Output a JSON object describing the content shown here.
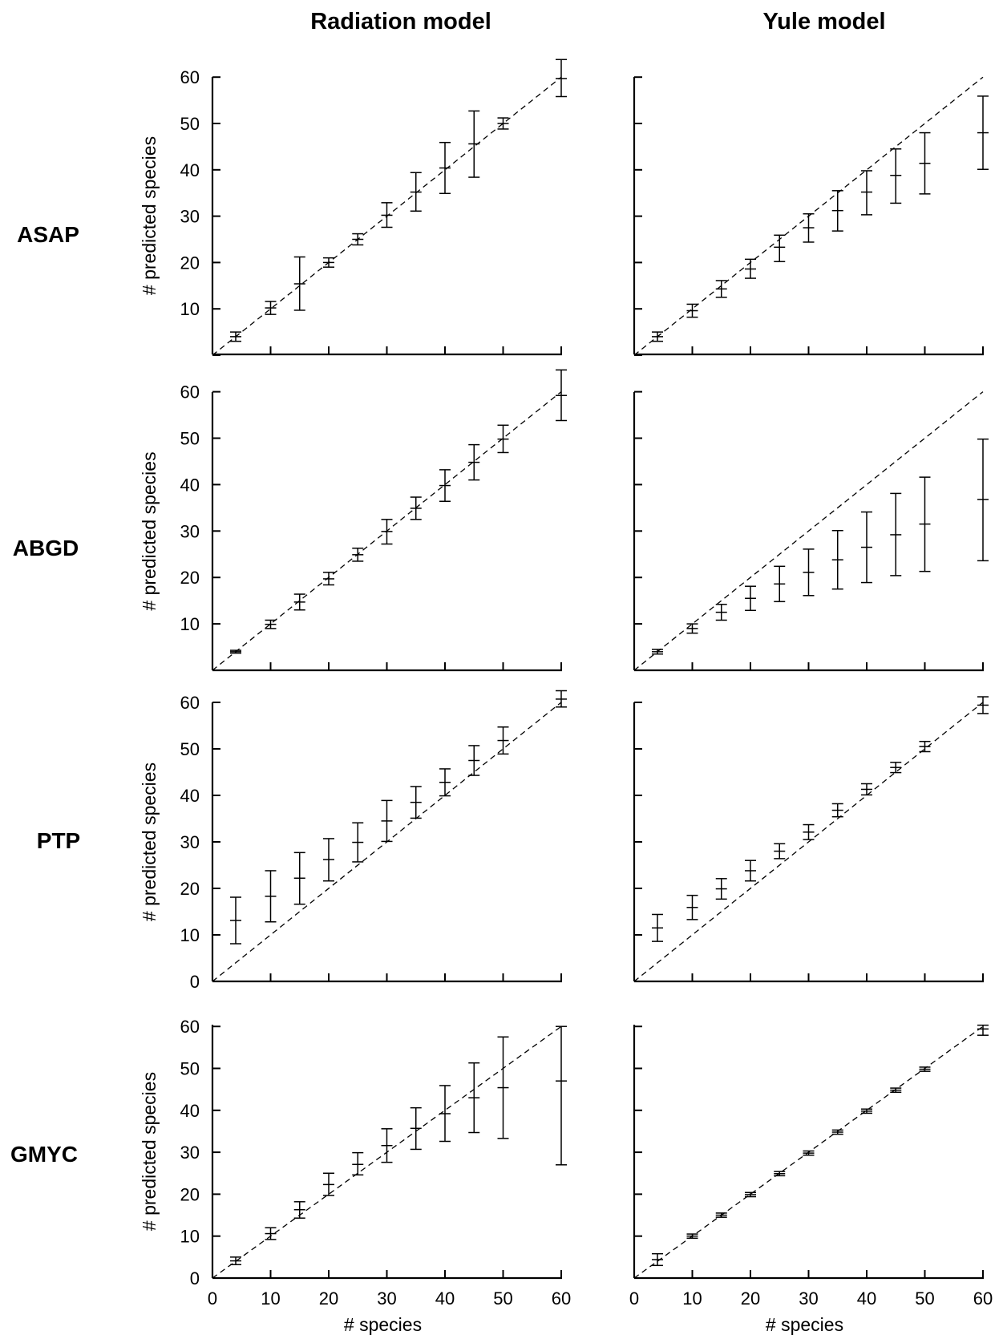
{
  "figure": {
    "column_titles": [
      "Radiation model",
      "Yule model"
    ],
    "row_labels": [
      "ASAP",
      "ABGD",
      "PTP",
      "GMYC"
    ]
  },
  "chart_data": [
    {
      "type": "scatter",
      "row": "ASAP",
      "column": "Radiation model",
      "xlabel": "",
      "ylabel": "# predicted species",
      "xlim": [
        0,
        60
      ],
      "ylim": [
        0,
        60
      ],
      "y_ticks": [
        10,
        20,
        30,
        40,
        50,
        60
      ],
      "x_ticks": [],
      "reference_line": "y = x (dashed)",
      "x": [
        4,
        10,
        15,
        20,
        25,
        30,
        35,
        40,
        45,
        50,
        60
      ],
      "y": [
        4,
        10.2,
        15.4,
        20,
        25,
        30.2,
        35.2,
        40.4,
        45.6,
        50,
        59.7
      ],
      "y_low": [
        3,
        8.8,
        9.7,
        19,
        23.8,
        27.6,
        31.1,
        34.9,
        38.4,
        48.8,
        55.8
      ],
      "y_high": [
        5,
        11.6,
        21.2,
        21,
        26.2,
        32.9,
        39.4,
        45.9,
        52.7,
        51.2,
        63.8
      ]
    },
    {
      "type": "scatter",
      "row": "ASAP",
      "column": "Yule model",
      "xlabel": "",
      "ylabel": "",
      "xlim": [
        0,
        60
      ],
      "ylim": [
        0,
        60
      ],
      "y_ticks": [],
      "x_ticks": [],
      "reference_line": "y = x (dashed)",
      "x": [
        4,
        10,
        15,
        20,
        25,
        30,
        35,
        40,
        45,
        50,
        60
      ],
      "y": [
        4,
        9.6,
        14.3,
        18.6,
        23.3,
        27.5,
        31.2,
        35.2,
        38.8,
        41.4,
        48
      ],
      "y_low": [
        3,
        8.2,
        12.5,
        16.6,
        20.2,
        24.4,
        26.8,
        30.3,
        32.8,
        34.8,
        40.1
      ],
      "y_high": [
        5,
        11,
        16.1,
        20.7,
        25.9,
        30.5,
        35.5,
        39.8,
        44.5,
        48,
        55.9
      ]
    },
    {
      "type": "scatter",
      "row": "ABGD",
      "column": "Radiation model",
      "xlabel": "",
      "ylabel": "# predicted species",
      "xlim": [
        0,
        60
      ],
      "ylim": [
        0,
        60
      ],
      "y_ticks": [
        10,
        20,
        30,
        40,
        50,
        60
      ],
      "x_ticks": [],
      "reference_line": "y = x (dashed)",
      "x": [
        4,
        10,
        15,
        20,
        25,
        30,
        35,
        40,
        45,
        50,
        60
      ],
      "y": [
        4,
        9.9,
        14.7,
        19.7,
        24.9,
        29.9,
        34.9,
        39.8,
        44.8,
        49.8,
        59.2
      ],
      "y_low": [
        3.7,
        9,
        13,
        18.4,
        23.5,
        27.2,
        32.5,
        36.4,
        41,
        46.9,
        53.8
      ],
      "y_high": [
        4.3,
        10.8,
        16.4,
        21.1,
        26.3,
        32.5,
        37.3,
        43.2,
        48.6,
        52.8,
        64.7
      ]
    },
    {
      "type": "scatter",
      "row": "ABGD",
      "column": "Yule model",
      "xlabel": "",
      "ylabel": "",
      "xlim": [
        0,
        60
      ],
      "ylim": [
        0,
        60
      ],
      "y_ticks": [],
      "x_ticks": [],
      "reference_line": "y = x (dashed)",
      "x": [
        4,
        10,
        15,
        20,
        25,
        30,
        35,
        40,
        45,
        50,
        60
      ],
      "y": [
        4,
        9,
        12.5,
        15.5,
        18.6,
        21.1,
        23.8,
        26.5,
        29.2,
        31.5,
        36.8
      ],
      "y_low": [
        3.5,
        8,
        10.8,
        12.9,
        14.8,
        16.1,
        17.5,
        18.9,
        20.4,
        21.3,
        23.6
      ],
      "y_high": [
        4.5,
        10,
        14.2,
        18.1,
        22.4,
        26.1,
        30.1,
        34.1,
        38.1,
        41.6,
        49.8
      ]
    },
    {
      "type": "scatter",
      "row": "PTP",
      "column": "Radiation model",
      "xlabel": "",
      "ylabel": "# predicted species",
      "xlim": [
        0,
        60
      ],
      "ylim": [
        0,
        60
      ],
      "y_ticks": [
        0,
        10,
        20,
        30,
        40,
        50,
        60
      ],
      "x_ticks": [],
      "reference_line": "y = x (dashed)",
      "x": [
        4,
        10,
        15,
        20,
        25,
        30,
        35,
        40,
        45,
        50,
        60
      ],
      "y": [
        13.1,
        18.3,
        22.2,
        26.2,
        29.9,
        34.5,
        38.5,
        42.8,
        47.5,
        51.8,
        60.7
      ],
      "y_low": [
        8.1,
        12.8,
        16.6,
        21.6,
        25.7,
        30.1,
        35.1,
        39.9,
        44.3,
        48.9,
        59
      ],
      "y_high": [
        18.1,
        23.8,
        27.7,
        30.7,
        34.1,
        38.9,
        41.9,
        45.7,
        50.7,
        54.7,
        62.5
      ]
    },
    {
      "type": "scatter",
      "row": "PTP",
      "column": "Yule model",
      "xlabel": "",
      "ylabel": "",
      "xlim": [
        0,
        60
      ],
      "ylim": [
        0,
        60
      ],
      "y_ticks": [],
      "x_ticks": [],
      "reference_line": "y = x (dashed)",
      "x": [
        4,
        10,
        15,
        20,
        25,
        30,
        35,
        40,
        45,
        50,
        60
      ],
      "y": [
        11.5,
        15.9,
        19.9,
        23.8,
        28,
        32.1,
        36.8,
        41.3,
        46,
        50.5,
        59.4
      ],
      "y_low": [
        8.6,
        13.3,
        17.7,
        21.6,
        26.4,
        30.5,
        35.4,
        40.1,
        44.9,
        49.4,
        57.6
      ],
      "y_high": [
        14.4,
        18.5,
        22.1,
        26,
        29.6,
        33.7,
        38.2,
        42.5,
        47.1,
        51.6,
        61.2
      ]
    },
    {
      "type": "scatter",
      "row": "GMYC",
      "column": "Radiation model",
      "xlabel": "# species",
      "ylabel": "# predicted species",
      "xlim": [
        0,
        60
      ],
      "ylim": [
        0,
        60
      ],
      "y_ticks": [
        0,
        10,
        20,
        30,
        40,
        50,
        60
      ],
      "x_ticks": [
        0,
        10,
        20,
        30,
        40,
        50,
        60
      ],
      "reference_line": "y = x (dashed)",
      "x": [
        4,
        10,
        15,
        20,
        25,
        30,
        35,
        40,
        45,
        50,
        60
      ],
      "y": [
        4.1,
        10.6,
        16.3,
        22.3,
        27.1,
        31.6,
        35.7,
        39.2,
        43,
        45.4,
        47
      ],
      "y_low": [
        3.2,
        9.2,
        14.3,
        19.7,
        24.6,
        27.6,
        30.7,
        32.6,
        34.7,
        33.3,
        27
      ],
      "y_high": [
        5,
        12,
        18.2,
        25,
        29.9,
        35.6,
        40.6,
        45.9,
        51.3,
        57.5,
        60
      ]
    },
    {
      "type": "scatter",
      "row": "GMYC",
      "column": "Yule model",
      "xlabel": "# species",
      "ylabel": "",
      "xlim": [
        0,
        60
      ],
      "ylim": [
        0,
        60
      ],
      "y_ticks": [],
      "x_ticks": [
        0,
        10,
        20,
        30,
        40,
        50,
        60
      ],
      "reference_line": "y = x (dashed)",
      "x": [
        4,
        10,
        15,
        20,
        25,
        30,
        35,
        40,
        45,
        50,
        60
      ],
      "y": [
        4.4,
        10,
        15,
        19.9,
        24.9,
        29.8,
        34.8,
        39.8,
        44.8,
        49.8,
        59.4
      ],
      "y_low": [
        3,
        9.5,
        14.5,
        19.4,
        24.4,
        29.3,
        34.3,
        39.3,
        44.3,
        49.3,
        57.9
      ],
      "y_high": [
        5.8,
        10.5,
        15.5,
        20.4,
        25.4,
        30.3,
        35.3,
        40.3,
        45.3,
        50.3,
        60.3
      ]
    }
  ]
}
